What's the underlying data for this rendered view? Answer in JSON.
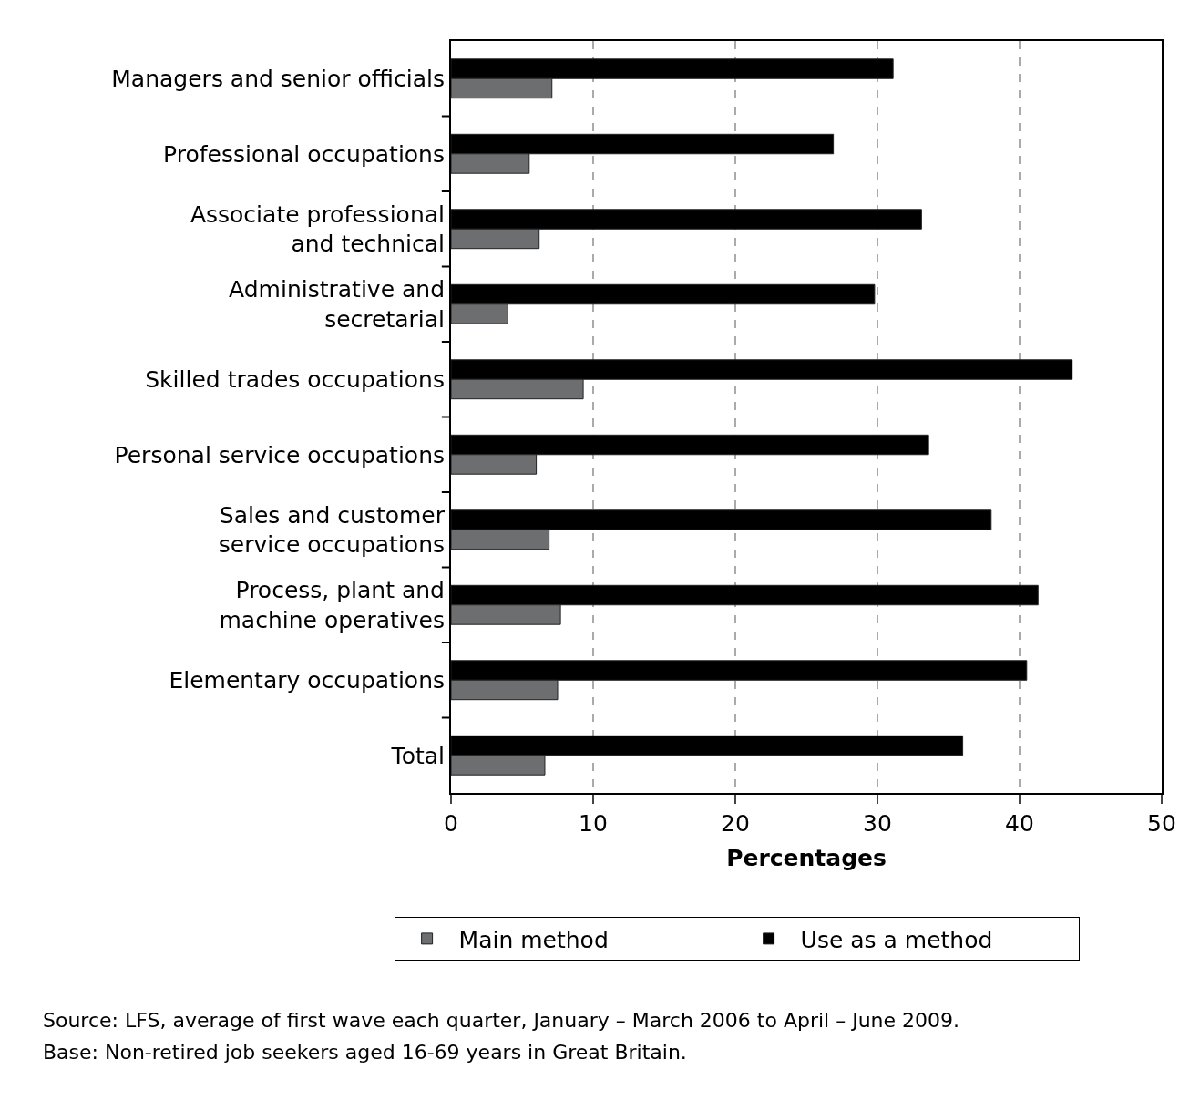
{
  "chart_data": {
    "type": "bar",
    "orientation": "horizontal",
    "categories": [
      "Managers and senior officials",
      "Professional occupations",
      "Associate professional\nand technical",
      "Administrative and\nsecretarial",
      "Skilled trades occupations",
      "Personal service occupations",
      "Sales and customer\nservice occupations",
      "Process, plant and\nmachine operatives",
      "Elementary occupations",
      "Total"
    ],
    "series": [
      {
        "name": "Main method",
        "color": "#6d6e70",
        "values": [
          7.1,
          5.5,
          6.2,
          4.0,
          9.3,
          6.0,
          6.9,
          7.7,
          7.5,
          6.6
        ]
      },
      {
        "name": "Use as a method",
        "color": "#000000",
        "values": [
          31.1,
          26.9,
          33.1,
          29.8,
          43.7,
          33.6,
          38.0,
          41.3,
          40.5,
          36.0
        ]
      }
    ],
    "xlabel": "Percentages",
    "xlim": [
      0,
      50
    ],
    "xticks": [
      0,
      10,
      20,
      30,
      40,
      50
    ],
    "grid": "x",
    "legend": "bottom",
    "annotations": [
      "Source: LFS, average of first wave each quarter, January – March 2006 to April – June 2009.",
      "Base: Non-retired job seekers aged 16-69 years in Great Britain."
    ]
  }
}
